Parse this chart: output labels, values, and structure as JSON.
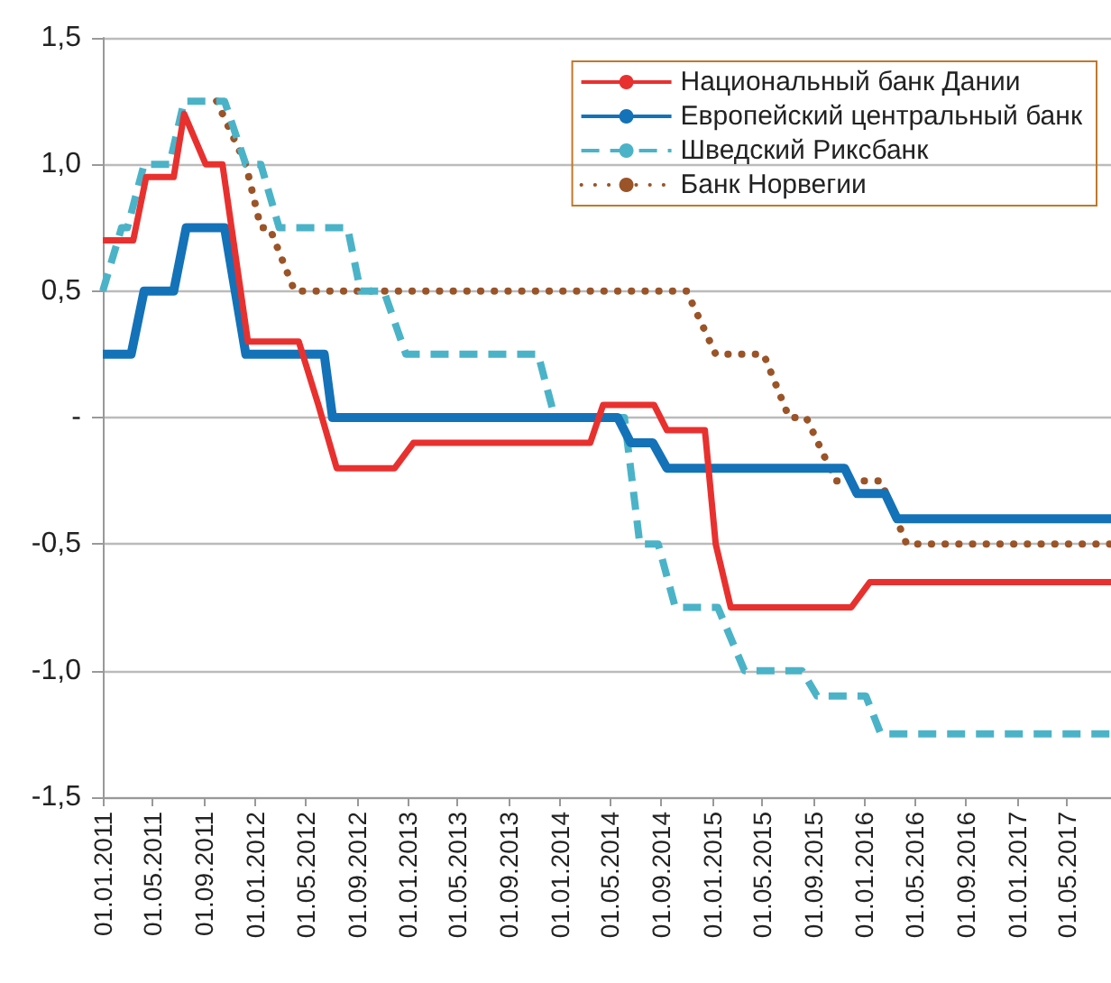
{
  "chart_data": {
    "type": "line",
    "marker": "none",
    "grid": "y",
    "legend": "top right",
    "xlim": [
      "2011-01-01",
      "2017-08-15"
    ],
    "xticks": [
      {
        "value": "2011-01-01",
        "label": "01.01.2011"
      },
      {
        "value": "2011-05-01",
        "label": "01.05.2011"
      },
      {
        "value": "2011-09-01",
        "label": "01.09.2011"
      },
      {
        "value": "2012-01-01",
        "label": "01.01.2012"
      },
      {
        "value": "2012-05-01",
        "label": "01.05.2012"
      },
      {
        "value": "2012-09-01",
        "label": "01.09.2012"
      },
      {
        "value": "2013-01-01",
        "label": "01.01.2013"
      },
      {
        "value": "2013-05-01",
        "label": "01.05.2013"
      },
      {
        "value": "2013-09-01",
        "label": "01.09.2013"
      },
      {
        "value": "2014-01-01",
        "label": "01.01.2014"
      },
      {
        "value": "2014-05-01",
        "label": "01.05.2014"
      },
      {
        "value": "2014-09-01",
        "label": "01.09.2014"
      },
      {
        "value": "2015-01-01",
        "label": "01.01.2015"
      },
      {
        "value": "2015-05-01",
        "label": "01.05.2015"
      },
      {
        "value": "2015-09-01",
        "label": "01.09.2015"
      },
      {
        "value": "2016-01-01",
        "label": "01.01.2016"
      },
      {
        "value": "2016-05-01",
        "label": "01.05.2016"
      },
      {
        "value": "2016-09-01",
        "label": "01.09.2016"
      },
      {
        "value": "2017-01-01",
        "label": "01.01.2017"
      },
      {
        "value": "2017-05-01",
        "label": "01.05.2017"
      }
    ],
    "ylim": [
      -1.5,
      1.5
    ],
    "yticks": [
      {
        "value": -1.5,
        "label": "-1,5"
      },
      {
        "value": -1,
        "label": "-1,0"
      },
      {
        "value": -0.5,
        "label": "-0,5"
      },
      {
        "value": 0,
        "label": "-"
      },
      {
        "value": 0.5,
        "label": "0,5"
      },
      {
        "value": 1,
        "label": "1,0"
      },
      {
        "value": 1.5,
        "label": "1,5"
      }
    ],
    "series": [
      {
        "name": "Национальный банк Дании",
        "color": "#e8312f",
        "line_style": "solid",
        "x": [
          "2011-01-01",
          "2011-03-15",
          "2011-04-15",
          "2011-06-20",
          "2011-07-15",
          "2011-09-05",
          "2011-10-15",
          "2011-12-15",
          "2012-04-15",
          "2012-06-01",
          "2012-07-15",
          "2012-12-01",
          "2013-01-15",
          "2014-03-15",
          "2014-04-15",
          "2014-08-15",
          "2014-09-15",
          "2014-12-15",
          "2015-01-10",
          "2015-02-15",
          "2015-12-01",
          "2016-01-15",
          "2017-08-15"
        ],
        "values": [
          0.7,
          0.7,
          0.95,
          0.95,
          1.2,
          1.0,
          1.0,
          0.3,
          0.3,
          0.05,
          -0.2,
          -0.2,
          -0.1,
          -0.1,
          0.05,
          0.05,
          -0.05,
          -0.05,
          -0.5,
          -0.75,
          -0.75,
          -0.65,
          -0.65
        ]
      },
      {
        "name": "Европейский центральный банк",
        "color": "#1472b8",
        "line_style": "solid",
        "x": [
          "2011-01-01",
          "2011-03-10",
          "2011-04-10",
          "2011-06-20",
          "2011-07-20",
          "2011-10-20",
          "2011-12-10",
          "2012-06-15",
          "2012-07-05",
          "2014-05-20",
          "2014-06-20",
          "2014-08-12",
          "2014-09-15",
          "2015-11-15",
          "2015-12-15",
          "2016-02-20",
          "2016-03-20",
          "2017-08-15"
        ],
        "values": [
          0.25,
          0.25,
          0.5,
          0.5,
          0.75,
          0.75,
          0.25,
          0.25,
          0,
          0,
          -0.1,
          -0.1,
          -0.2,
          -0.2,
          -0.3,
          -0.3,
          -0.4,
          -0.4
        ]
      },
      {
        "name": "Шведский Риксбанк",
        "color": "#4bb3c8",
        "line_style": "dashed",
        "x": [
          "2011-01-01",
          "2011-02-15",
          "2011-03-01",
          "2011-04-10",
          "2011-06-10",
          "2011-07-15",
          "2011-10-20",
          "2011-12-10",
          "2012-01-15",
          "2012-02-28",
          "2012-08-10",
          "2012-09-10",
          "2012-11-05",
          "2012-12-28",
          "2013-11-10",
          "2013-12-20",
          "2014-06-05",
          "2014-07-12",
          "2014-08-25",
          "2014-10-05",
          "2015-01-15",
          "2015-03-20",
          "2015-08-05",
          "2015-09-10",
          "2016-01-05",
          "2016-02-10",
          "2017-08-15"
        ],
        "values": [
          0.5,
          0.75,
          0.75,
          1.0,
          1.0,
          1.25,
          1.25,
          1.0,
          1.0,
          0.75,
          0.75,
          0.5,
          0.5,
          0.25,
          0.25,
          0,
          0,
          -0.5,
          -0.5,
          -0.75,
          -0.75,
          -1.0,
          -1.0,
          -1.1,
          -1.1,
          -1.25,
          -1.25
        ]
      },
      {
        "name": "Банк Норвегии",
        "color": "#9a5428",
        "line_style": "dotted",
        "x": [
          "2011-10-01",
          "2011-12-10",
          "2012-01-15",
          "2012-02-05",
          "2012-04-05",
          "2014-11-01",
          "2015-01-10",
          "2015-05-05",
          "2015-07-05",
          "2015-08-15",
          "2015-10-25",
          "2016-02-10",
          "2016-04-12",
          "2017-08-15"
        ],
        "values": [
          1.25,
          1.0,
          0.75,
          0.75,
          0.5,
          0.5,
          0.25,
          0.25,
          0,
          0,
          -0.25,
          -0.25,
          -0.5,
          -0.5
        ]
      }
    ]
  }
}
